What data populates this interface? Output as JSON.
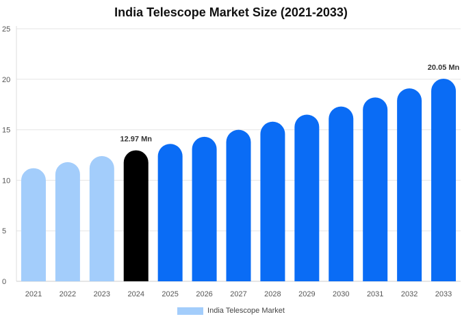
{
  "chart_data": {
    "type": "bar",
    "title": "India Telescope Market Size (2021-2033)",
    "xlabel": "",
    "ylabel": "",
    "categories": [
      "2021",
      "2022",
      "2023",
      "2024",
      "2025",
      "2026",
      "2027",
      "2028",
      "2029",
      "2030",
      "2031",
      "2032",
      "2033"
    ],
    "series": [
      {
        "name": "India Telescope Market",
        "values": [
          11.2,
          11.8,
          12.4,
          12.97,
          13.6,
          14.3,
          15.0,
          15.8,
          16.5,
          17.3,
          18.2,
          19.1,
          20.05
        ]
      }
    ],
    "ylim": [
      0,
      25
    ],
    "yticks": [
      0,
      5,
      10,
      15,
      20,
      25
    ],
    "data_labels": [
      {
        "category": "2024",
        "text": "12.97 Mn"
      },
      {
        "category": "2033",
        "text": "20.05 Mn"
      }
    ],
    "colors": {
      "historical": "#a3cdfb",
      "base_year": "#000000",
      "forecast": "#0a6cf5",
      "grid": "#e6e6e6"
    },
    "historical_categories": [
      "2021",
      "2022",
      "2023"
    ],
    "base_year_category": "2024",
    "grid": true,
    "legend_position": "bottom"
  }
}
